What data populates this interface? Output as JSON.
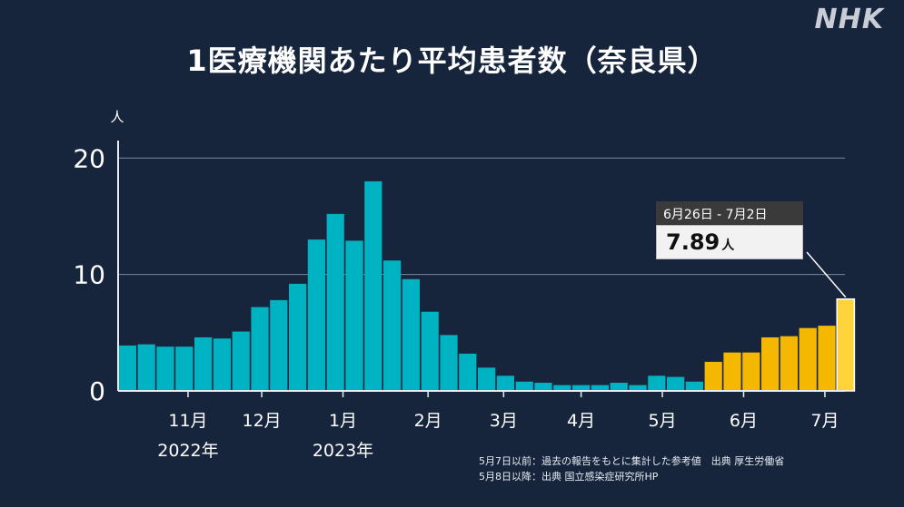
{
  "header": {
    "title": "1医療機関あたり平均患者数（奈良県）",
    "logo": "NHK"
  },
  "callout": {
    "period": "6月26日 - 7月2日",
    "value": "7.89",
    "unit": "人"
  },
  "notes": {
    "line1": "5月7日以前：過去の報告をもとに集計した参考値　出典 厚生労働省",
    "line2": "5月8日以降：出典 国立感染症研究所HP"
  },
  "colors": {
    "background": "#16243c",
    "reference_bars": "#00b3c2",
    "official_bars": "#f5b800",
    "latest_bar": "#ffd43b"
  },
  "chart_data": {
    "type": "bar",
    "ylabel": "人",
    "ylim": [
      0,
      21.5
    ],
    "yticks": [
      0,
      10,
      20
    ],
    "grid": true,
    "x_ticks": [
      {
        "label": "11月",
        "year": "2022年",
        "at": 3.7
      },
      {
        "label": "12月",
        "year": "",
        "at": 7.6
      },
      {
        "label": "1月",
        "year": "2023年",
        "at": 11.9
      },
      {
        "label": "2月",
        "year": "",
        "at": 16.4
      },
      {
        "label": "3月",
        "year": "",
        "at": 20.4
      },
      {
        "label": "4月",
        "year": "",
        "at": 24.5
      },
      {
        "label": "5月",
        "year": "",
        "at": 28.8
      },
      {
        "label": "6月",
        "year": "",
        "at": 33.1
      },
      {
        "label": "7月",
        "year": "",
        "at": 37.4
      }
    ],
    "series": [
      {
        "values": [
          3.9,
          4.0,
          3.8,
          3.8,
          4.6,
          4.5,
          5.1,
          7.2,
          7.8,
          9.2,
          13.0,
          15.2,
          12.9,
          18.0,
          11.2,
          9.6,
          6.8,
          4.8,
          3.2,
          2.0,
          1.3,
          0.8,
          0.7,
          0.5,
          0.5,
          0.5,
          0.7,
          0.5,
          1.3,
          1.2,
          0.8
        ]
      },
      {
        "values": [
          2.5,
          3.3,
          3.3,
          4.6,
          4.7,
          5.4,
          5.6,
          7.89
        ]
      }
    ]
  }
}
